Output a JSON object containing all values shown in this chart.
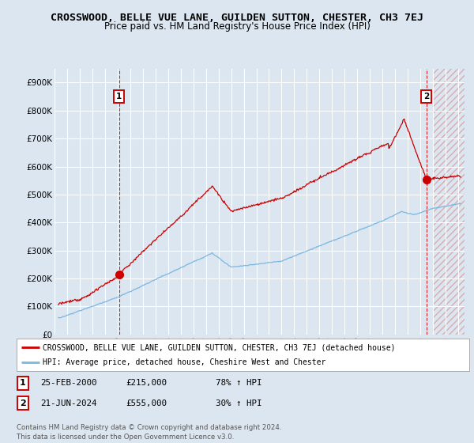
{
  "title": "CROSSWOOD, BELLE VUE LANE, GUILDEN SUTTON, CHESTER, CH3 7EJ",
  "subtitle": "Price paid vs. HM Land Registry's House Price Index (HPI)",
  "background_color": "#dce6f0",
  "plot_bg_color": "#dce6f0",
  "hpi_line_color": "#7cb8e0",
  "price_line_color": "#cc0000",
  "annotation_color": "#cc0000",
  "ylim": [
    0,
    950000
  ],
  "yticks": [
    0,
    100000,
    200000,
    300000,
    400000,
    500000,
    600000,
    700000,
    800000,
    900000
  ],
  "ytick_labels": [
    "£0",
    "£100K",
    "£200K",
    "£300K",
    "£400K",
    "£500K",
    "£600K",
    "£700K",
    "£800K",
    "£900K"
  ],
  "xlim_start": 1995.3,
  "xlim_end": 2027.5,
  "xtick_years": [
    1995,
    1996,
    1997,
    1998,
    1999,
    2000,
    2001,
    2002,
    2003,
    2004,
    2005,
    2006,
    2007,
    2008,
    2009,
    2010,
    2011,
    2012,
    2013,
    2014,
    2015,
    2016,
    2017,
    2018,
    2019,
    2020,
    2021,
    2022,
    2023,
    2024,
    2025,
    2026,
    2027
  ],
  "transaction1_x": 2000.12,
  "transaction1_y": 215000,
  "transaction2_x": 2024.47,
  "transaction2_y": 555000,
  "legend_label_red": "CROSSWOOD, BELLE VUE LANE, GUILDEN SUTTON, CHESTER, CH3 7EJ (detached house)",
  "legend_label_blue": "HPI: Average price, detached house, Cheshire West and Chester",
  "transaction1_info_date": "25-FEB-2000",
  "transaction1_info_price": "£215,000",
  "transaction1_info_hpi": "78% ↑ HPI",
  "transaction2_info_date": "21-JUN-2024",
  "transaction2_info_price": "£555,000",
  "transaction2_info_hpi": "30% ↑ HPI",
  "footer1": "Contains HM Land Registry data © Crown copyright and database right 2024.",
  "footer2": "This data is licensed under the Open Government Licence v3.0.",
  "hatch_start": 2025.0,
  "hatch_color": "#cc0000"
}
